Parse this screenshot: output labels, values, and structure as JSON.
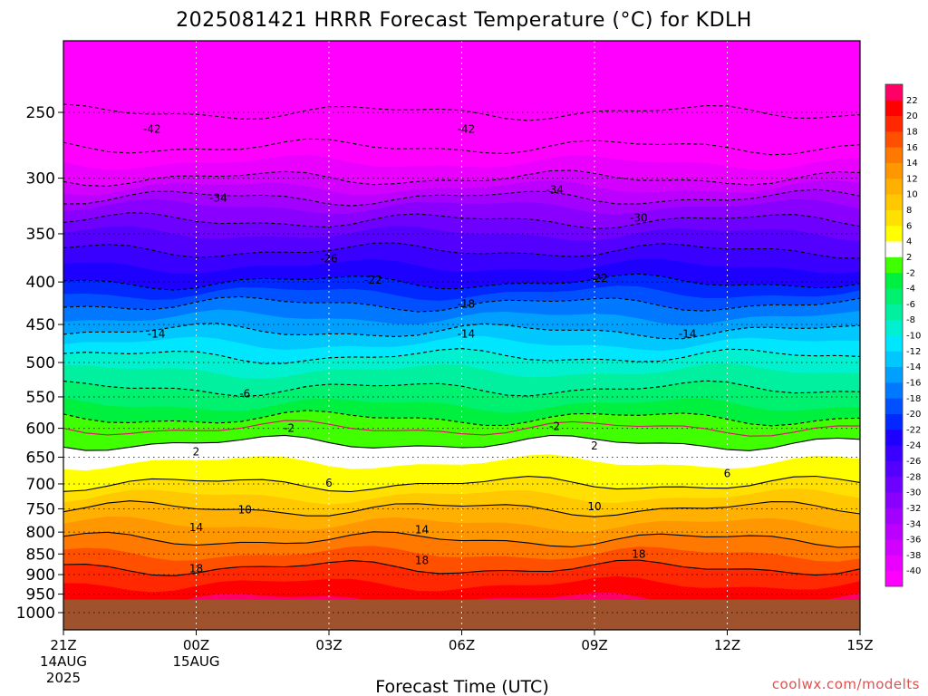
{
  "chart_data": {
    "type": "heatmap",
    "title": "2025081421 HRRR Forecast Temperature (°C) for KDLH",
    "xlabel": "Forecast Time (UTC)",
    "ylabel": "",
    "credit": "coolwx.com/modelts",
    "x_ticks": [
      {
        "hour": 0,
        "label": "21Z",
        "sub1": "14AUG",
        "sub2": "2025"
      },
      {
        "hour": 3,
        "label": "00Z",
        "sub1": "15AUG",
        "sub2": ""
      },
      {
        "hour": 6,
        "label": "03Z",
        "sub1": "",
        "sub2": ""
      },
      {
        "hour": 9,
        "label": "06Z",
        "sub1": "",
        "sub2": ""
      },
      {
        "hour": 12,
        "label": "09Z",
        "sub1": "",
        "sub2": ""
      },
      {
        "hour": 15,
        "label": "12Z",
        "sub1": "",
        "sub2": ""
      },
      {
        "hour": 18,
        "label": "15Z",
        "sub1": "",
        "sub2": ""
      }
    ],
    "xlim": [
      0,
      18
    ],
    "y_ticks": [
      250,
      300,
      350,
      400,
      450,
      500,
      550,
      600,
      650,
      700,
      750,
      800,
      850,
      900,
      950,
      1000
    ],
    "ylim": [
      200,
      1050
    ],
    "y_scale": "log-pressure",
    "surface_pressure_hPa": 965,
    "ground_color": "#a0522d",
    "levels": [
      -40,
      -38,
      -36,
      -34,
      -32,
      -30,
      -28,
      -26,
      -24,
      -22,
      -20,
      -18,
      -16,
      -14,
      -12,
      -10,
      -8,
      -6,
      -4,
      -2,
      2,
      4,
      6,
      8,
      10,
      12,
      14,
      16,
      18,
      20,
      22
    ],
    "colorbar_colors": [
      "#ff00ff",
      "#ea00ff",
      "#d200ff",
      "#bb00ff",
      "#a200ff",
      "#8a00ff",
      "#6e00ff",
      "#5400ff",
      "#3a00ff",
      "#1e00ff",
      "#0028ff",
      "#0050ff",
      "#0078ff",
      "#00a0ff",
      "#00c8ff",
      "#00e6ff",
      "#00f0d0",
      "#00f0a0",
      "#00f070",
      "#00f040",
      "#40ff00",
      "#ffffff",
      "#ffff00",
      "#ffe000",
      "#ffc800",
      "#ffb000",
      "#ff9800",
      "#ff7800",
      "#ff5000",
      "#ff2800",
      "#ff0000",
      "#ff0066"
    ],
    "temperature_profile_hPa_degC": [
      [
        200,
        -57
      ],
      [
        250,
        -46
      ],
      [
        275,
        -42
      ],
      [
        300,
        -38
      ],
      [
        325,
        -32
      ],
      [
        350,
        -28
      ],
      [
        375,
        -25
      ],
      [
        400,
        -22
      ],
      [
        425,
        -18
      ],
      [
        450,
        -15
      ],
      [
        475,
        -12
      ],
      [
        500,
        -9
      ],
      [
        525,
        -7
      ],
      [
        550,
        -5
      ],
      [
        575,
        -3
      ],
      [
        600,
        0
      ],
      [
        625,
        2
      ],
      [
        650,
        3.5
      ],
      [
        700,
        6
      ],
      [
        750,
        10
      ],
      [
        800,
        13
      ],
      [
        850,
        16
      ],
      [
        900,
        19
      ],
      [
        950,
        21
      ],
      [
        965,
        22
      ]
    ],
    "contour_labels": [
      {
        "value": -42,
        "hour": 2.0,
        "p": 262
      },
      {
        "value": -42,
        "hour": 9.1,
        "p": 262
      },
      {
        "value": -34,
        "hour": 3.5,
        "p": 317
      },
      {
        "value": -34,
        "hour": 11.1,
        "p": 310
      },
      {
        "value": -30,
        "hour": 13.0,
        "p": 335
      },
      {
        "value": -26,
        "hour": 6.0,
        "p": 375
      },
      {
        "value": -22,
        "hour": 7.0,
        "p": 398
      },
      {
        "value": -22,
        "hour": 12.1,
        "p": 396
      },
      {
        "value": -18,
        "hour": 9.1,
        "p": 425
      },
      {
        "value": -14,
        "hour": 2.1,
        "p": 462
      },
      {
        "value": -14,
        "hour": 9.1,
        "p": 462
      },
      {
        "value": -14,
        "hour": 14.1,
        "p": 462
      },
      {
        "value": -6,
        "hour": 4.1,
        "p": 545
      },
      {
        "value": -2,
        "hour": 5.1,
        "p": 600
      },
      {
        "value": -2,
        "hour": 11.1,
        "p": 597
      },
      {
        "value": 2,
        "hour": 3.0,
        "p": 640
      },
      {
        "value": 2,
        "hour": 12.0,
        "p": 630
      },
      {
        "value": 6,
        "hour": 6.0,
        "p": 698
      },
      {
        "value": 6,
        "hour": 15.0,
        "p": 680
      },
      {
        "value": 10,
        "hour": 4.1,
        "p": 752
      },
      {
        "value": 10,
        "hour": 12.0,
        "p": 745
      },
      {
        "value": 14,
        "hour": 3.0,
        "p": 790
      },
      {
        "value": 14,
        "hour": 8.1,
        "p": 795
      },
      {
        "value": 18,
        "hour": 3.0,
        "p": 885
      },
      {
        "value": 18,
        "hour": 8.1,
        "p": 865
      },
      {
        "value": 18,
        "hour": 13.0,
        "p": 850
      }
    ]
  }
}
